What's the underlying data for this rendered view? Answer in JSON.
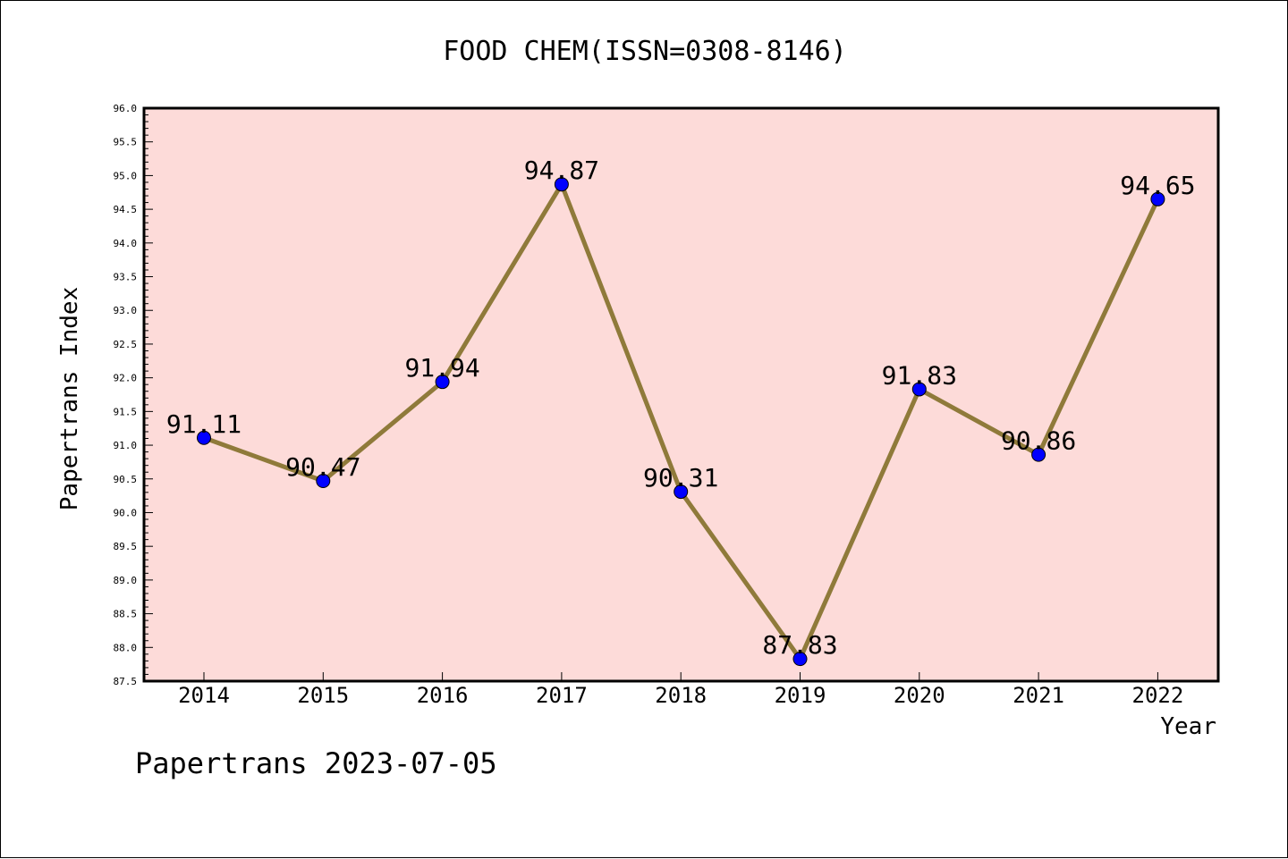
{
  "chart_data": {
    "type": "line",
    "title": "FOOD CHEM(ISSN=0308-8146)",
    "xlabel": "Year",
    "ylabel": "Papertrans Index",
    "categories": [
      "2014",
      "2015",
      "2016",
      "2017",
      "2018",
      "2019",
      "2020",
      "2021",
      "2022"
    ],
    "values": [
      91.11,
      90.47,
      91.94,
      94.87,
      90.31,
      87.83,
      91.83,
      90.86,
      94.65
    ],
    "value_labels": [
      "91.11",
      "90.47",
      "91.94",
      "94.87",
      "90.31",
      "87.83",
      "91.83",
      "90.86",
      "94.65"
    ],
    "ylim": [
      87.5,
      96.0
    ],
    "yticks": [
      "87.5",
      "88.0",
      "88.5",
      "89.0",
      "89.5",
      "90.0",
      "90.5",
      "91.0",
      "91.5",
      "92.0",
      "92.5",
      "93.0",
      "93.5",
      "94.0",
      "94.5",
      "95.0",
      "95.5",
      "96.0"
    ],
    "grid": false,
    "colors": {
      "plot_background": "#fddbd9",
      "line": "#8f7a3a",
      "marker": "#0000ff"
    }
  },
  "footer": {
    "text": "Papertrans 2023-07-05"
  }
}
